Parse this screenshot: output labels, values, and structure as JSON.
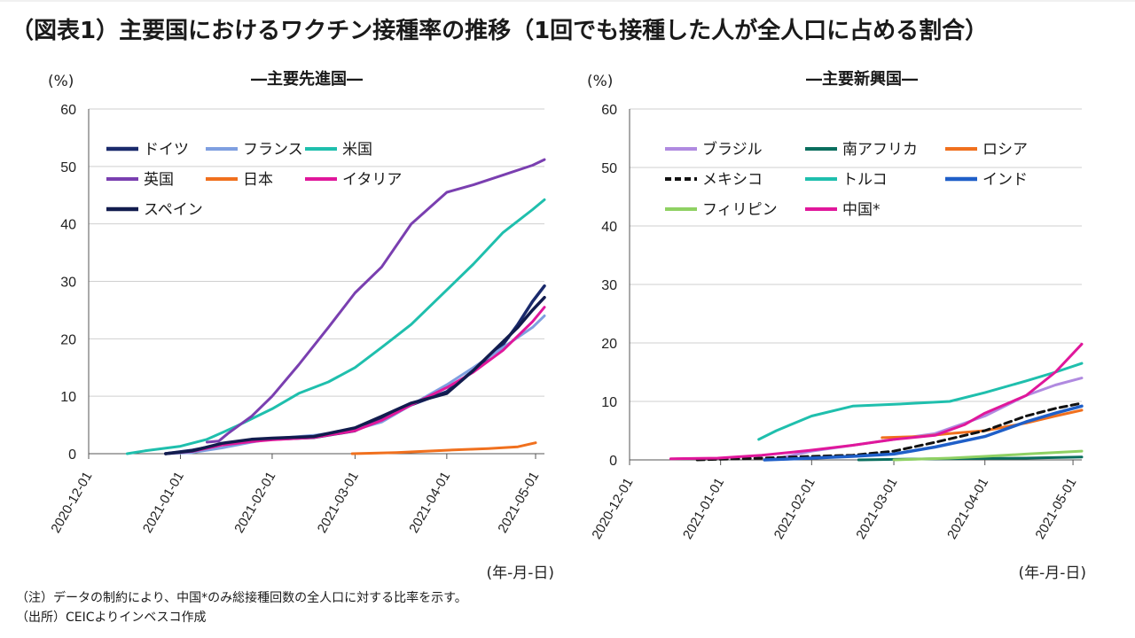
{
  "title": "（図表1）主要国におけるワクチン接種率の推移（1回でも接種した人が全人口に占める割合）",
  "notes": [
    "（注）データの制約により、中国*のみ総接種回数の全人口に対する比率を示す。",
    "（出所）CEICよりインベスコ作成"
  ],
  "chart_data": [
    {
      "type": "line",
      "title": "―主要先進国―",
      "ylabel": "(%)",
      "xlabel": "(年-月-日)",
      "ylim": [
        0,
        60
      ],
      "yticks": [
        0,
        10,
        20,
        30,
        40,
        50,
        60
      ],
      "xlim": [
        "2020-12-01",
        "2021-05-04"
      ],
      "xticks": [
        "2020-12-01",
        "2021-01-01",
        "2021-02-01",
        "2021-03-01",
        "2021-04-01",
        "2021-05-01"
      ],
      "grid": true,
      "legend": "top-left",
      "series": [
        {
          "name": "ドイツ",
          "color": "#1a2a6c",
          "width": 3.5,
          "dash": "",
          "points": [
            [
              "2020-12-27",
              0
            ],
            [
              "2021-01-05",
              0.6
            ],
            [
              "2021-01-15",
              1.6
            ],
            [
              "2021-01-25",
              2.2
            ],
            [
              "2021-02-01",
              2.5
            ],
            [
              "2021-02-15",
              2.8
            ],
            [
              "2021-03-01",
              4.0
            ],
            [
              "2021-03-10",
              6.2
            ],
            [
              "2021-03-20",
              8.5
            ],
            [
              "2021-04-01",
              10.8
            ],
            [
              "2021-04-10",
              14.5
            ],
            [
              "2021-04-20",
              19.0
            ],
            [
              "2021-04-25",
              22.5
            ],
            [
              "2021-04-30",
              26.5
            ],
            [
              "2021-05-04",
              29.2
            ]
          ]
        },
        {
          "name": "フランス",
          "color": "#7f9fe0",
          "width": 3,
          "dash": "",
          "points": [
            [
              "2020-12-27",
              0
            ],
            [
              "2021-01-05",
              0.2
            ],
            [
              "2021-01-15",
              1.0
            ],
            [
              "2021-01-25",
              2.0
            ],
            [
              "2021-02-01",
              2.6
            ],
            [
              "2021-02-15",
              3.2
            ],
            [
              "2021-03-01",
              4.2
            ],
            [
              "2021-03-10",
              5.5
            ],
            [
              "2021-03-20",
              8.5
            ],
            [
              "2021-04-01",
              12.0
            ],
            [
              "2021-04-10",
              15.0
            ],
            [
              "2021-04-20",
              18.5
            ],
            [
              "2021-04-30",
              22.0
            ],
            [
              "2021-05-04",
              24.0
            ]
          ]
        },
        {
          "name": "米国",
          "color": "#1fbfad",
          "width": 3,
          "dash": "",
          "points": [
            [
              "2020-12-14",
              0
            ],
            [
              "2020-12-20",
              0.5
            ],
            [
              "2021-01-01",
              1.3
            ],
            [
              "2021-01-10",
              2.5
            ],
            [
              "2021-01-20",
              4.8
            ],
            [
              "2021-02-01",
              7.8
            ],
            [
              "2021-02-10",
              10.5
            ],
            [
              "2021-02-20",
              12.5
            ],
            [
              "2021-03-01",
              15.0
            ],
            [
              "2021-03-10",
              18.5
            ],
            [
              "2021-03-20",
              22.5
            ],
            [
              "2021-04-01",
              28.5
            ],
            [
              "2021-04-10",
              33.0
            ],
            [
              "2021-04-20",
              38.5
            ],
            [
              "2021-04-30",
              42.5
            ],
            [
              "2021-05-04",
              44.2
            ]
          ]
        },
        {
          "name": "英国",
          "color": "#7a3fb0",
          "width": 3,
          "dash": "",
          "points": [
            [
              "2021-01-10",
              2.0
            ],
            [
              "2021-01-14",
              2.2
            ],
            [
              "2021-01-17",
              3.5
            ],
            [
              "2021-01-25",
              6.5
            ],
            [
              "2021-02-01",
              10.0
            ],
            [
              "2021-02-10",
              15.5
            ],
            [
              "2021-02-20",
              22.0
            ],
            [
              "2021-03-01",
              28.0
            ],
            [
              "2021-03-10",
              32.5
            ],
            [
              "2021-03-20",
              40.0
            ],
            [
              "2021-04-01",
              45.5
            ],
            [
              "2021-04-10",
              46.8
            ],
            [
              "2021-04-20",
              48.5
            ],
            [
              "2021-04-30",
              50.2
            ],
            [
              "2021-05-04",
              51.2
            ]
          ]
        },
        {
          "name": "日本",
          "color": "#f0701e",
          "width": 3,
          "dash": "",
          "points": [
            [
              "2021-02-28",
              0
            ],
            [
              "2021-03-15",
              0.2
            ],
            [
              "2021-04-01",
              0.6
            ],
            [
              "2021-04-15",
              0.9
            ],
            [
              "2021-04-25",
              1.2
            ],
            [
              "2021-05-01",
              1.9
            ]
          ]
        },
        {
          "name": "イタリア",
          "color": "#e0179b",
          "width": 3,
          "dash": "",
          "points": [
            [
              "2020-12-27",
              0
            ],
            [
              "2021-01-05",
              0.4
            ],
            [
              "2021-01-15",
              1.5
            ],
            [
              "2021-01-25",
              2.1
            ],
            [
              "2021-02-01",
              2.4
            ],
            [
              "2021-02-15",
              2.8
            ],
            [
              "2021-03-01",
              4.0
            ],
            [
              "2021-03-10",
              5.8
            ],
            [
              "2021-03-20",
              8.5
            ],
            [
              "2021-04-01",
              11.5
            ],
            [
              "2021-04-10",
              14.2
            ],
            [
              "2021-04-20",
              18.0
            ],
            [
              "2021-04-30",
              23.0
            ],
            [
              "2021-05-04",
              25.5
            ]
          ]
        },
        {
          "name": "スペイン",
          "color": "#121c4e",
          "width": 3.5,
          "dash": "",
          "points": [
            [
              "2020-12-27",
              0
            ],
            [
              "2021-01-05",
              0.5
            ],
            [
              "2021-01-15",
              1.8
            ],
            [
              "2021-01-25",
              2.5
            ],
            [
              "2021-02-01",
              2.7
            ],
            [
              "2021-02-15",
              3.0
            ],
            [
              "2021-03-01",
              4.5
            ],
            [
              "2021-03-10",
              6.5
            ],
            [
              "2021-03-20",
              8.8
            ],
            [
              "2021-04-01",
              10.5
            ],
            [
              "2021-04-10",
              14.5
            ],
            [
              "2021-04-20",
              19.5
            ],
            [
              "2021-04-25",
              22.0
            ],
            [
              "2021-04-30",
              25.0
            ],
            [
              "2021-05-04",
              27.2
            ]
          ]
        }
      ]
    },
    {
      "type": "line",
      "title": "―主要新興国―",
      "ylabel": "(%)",
      "xlabel": "(年-月-日)",
      "ylim": [
        0,
        60
      ],
      "yticks": [
        0,
        10,
        20,
        30,
        40,
        50,
        60
      ],
      "xlim": [
        "2020-12-01",
        "2021-05-04"
      ],
      "xticks": [
        "2020-12-01",
        "2021-01-01",
        "2021-02-01",
        "2021-03-01",
        "2021-04-01",
        "2021-05-01"
      ],
      "grid": true,
      "legend": "top-left",
      "series": [
        {
          "name": "ブラジル",
          "color": "#b08ae0",
          "width": 3,
          "dash": "",
          "points": [
            [
              "2021-01-18",
              0
            ],
            [
              "2021-02-01",
              1.5
            ],
            [
              "2021-02-15",
              2.5
            ],
            [
              "2021-03-01",
              3.5
            ],
            [
              "2021-03-15",
              4.5
            ],
            [
              "2021-04-01",
              7.5
            ],
            [
              "2021-04-15",
              11.0
            ],
            [
              "2021-04-25",
              12.8
            ],
            [
              "2021-05-04",
              14.0
            ]
          ]
        },
        {
          "name": "南アフリカ",
          "color": "#0a6e5e",
          "width": 3,
          "dash": "",
          "points": [
            [
              "2021-02-17",
              0
            ],
            [
              "2021-03-15",
              0.2
            ],
            [
              "2021-04-15",
              0.3
            ],
            [
              "2021-05-04",
              0.5
            ]
          ]
        },
        {
          "name": "ロシア",
          "color": "#f0701e",
          "width": 3,
          "dash": "",
          "points": [
            [
              "2021-02-25",
              3.8
            ],
            [
              "2021-03-10",
              4.0
            ],
            [
              "2021-03-20",
              4.5
            ],
            [
              "2021-04-01",
              5.0
            ],
            [
              "2021-04-15",
              6.3
            ],
            [
              "2021-04-25",
              7.5
            ],
            [
              "2021-05-04",
              8.5
            ]
          ]
        },
        {
          "name": "メキシコ",
          "color": "#111111",
          "width": 3,
          "dash": "8,5",
          "points": [
            [
              "2020-12-24",
              0
            ],
            [
              "2021-01-15",
              0.3
            ],
            [
              "2021-02-01",
              0.6
            ],
            [
              "2021-02-15",
              0.8
            ],
            [
              "2021-03-01",
              1.5
            ],
            [
              "2021-03-15",
              3.0
            ],
            [
              "2021-04-01",
              5.0
            ],
            [
              "2021-04-15",
              7.5
            ],
            [
              "2021-04-25",
              8.8
            ],
            [
              "2021-05-04",
              9.7
            ]
          ]
        },
        {
          "name": "トルコ",
          "color": "#1fbfad",
          "width": 3,
          "dash": "",
          "points": [
            [
              "2021-01-14",
              3.5
            ],
            [
              "2021-01-20",
              5.0
            ],
            [
              "2021-02-01",
              7.5
            ],
            [
              "2021-02-15",
              9.2
            ],
            [
              "2021-03-01",
              9.5
            ],
            [
              "2021-03-20",
              10.0
            ],
            [
              "2021-04-01",
              11.5
            ],
            [
              "2021-04-15",
              13.5
            ],
            [
              "2021-04-25",
              15.0
            ],
            [
              "2021-05-04",
              16.5
            ]
          ]
        },
        {
          "name": "インド",
          "color": "#1f5fc8",
          "width": 3.5,
          "dash": "",
          "points": [
            [
              "2021-01-16",
              0
            ],
            [
              "2021-02-01",
              0.3
            ],
            [
              "2021-02-15",
              0.6
            ],
            [
              "2021-03-01",
              1.0
            ],
            [
              "2021-03-15",
              2.2
            ],
            [
              "2021-04-01",
              4.0
            ],
            [
              "2021-04-15",
              6.5
            ],
            [
              "2021-04-25",
              8.0
            ],
            [
              "2021-05-04",
              9.2
            ]
          ]
        },
        {
          "name": "フィリピン",
          "color": "#8fd163",
          "width": 3,
          "dash": "",
          "points": [
            [
              "2021-03-01",
              0
            ],
            [
              "2021-03-20",
              0.3
            ],
            [
              "2021-04-01",
              0.6
            ],
            [
              "2021-04-15",
              1.0
            ],
            [
              "2021-05-04",
              1.5
            ]
          ]
        },
        {
          "name": "中国*",
          "color": "#e0179b",
          "width": 3,
          "dash": "",
          "points": [
            [
              "2020-12-15",
              0.2
            ],
            [
              "2020-12-31",
              0.3
            ],
            [
              "2021-01-15",
              0.8
            ],
            [
              "2021-01-31",
              1.6
            ],
            [
              "2021-02-15",
              2.5
            ],
            [
              "2021-03-01",
              3.5
            ],
            [
              "2021-03-15",
              4.2
            ],
            [
              "2021-03-25",
              6.0
            ],
            [
              "2021-04-01",
              8.0
            ],
            [
              "2021-04-15",
              11.0
            ],
            [
              "2021-04-25",
              15.0
            ],
            [
              "2021-05-04",
              19.8
            ]
          ]
        }
      ]
    }
  ]
}
